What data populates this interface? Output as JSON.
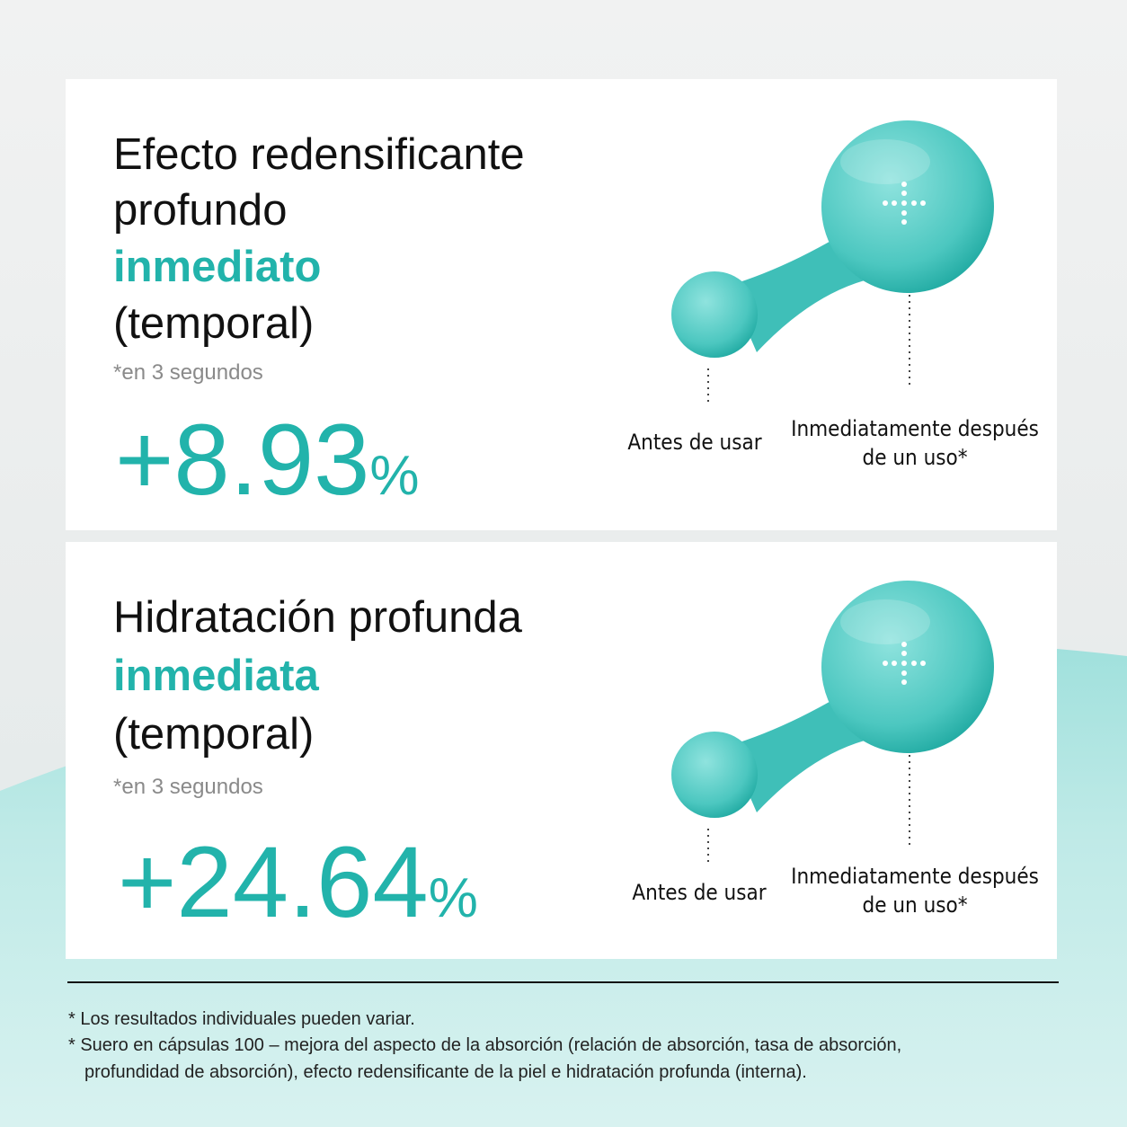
{
  "cards": [
    {
      "title": [
        "Efecto redensificante",
        "profundo"
      ],
      "highlight": "inmediato",
      "qualifier": "(temporal)",
      "note": "*en 3 segundos",
      "number": "+8.93",
      "unit": "%",
      "labels": {
        "before": "Antes de usar",
        "after": [
          "Inmediatamente después",
          "de un uso*"
        ]
      }
    },
    {
      "title": [
        "Hidratación profunda"
      ],
      "highlight": "inmediata",
      "qualifier": "(temporal)",
      "note": "*en 3 segundos",
      "number": "+24.64",
      "unit": "%",
      "labels": {
        "before": "Antes de usar",
        "after": [
          "Inmediatamente después",
          "de un uso*"
        ]
      }
    }
  ],
  "footnotes": [
    [
      "* Los resultados individuales pueden variar."
    ],
    [
      "* Suero en cápsulas 100 – mejora del aspecto de la absorción (relación de absorción, tasa de absorción,",
      "profundidad de absorción), efecto redensificante de la piel e hidratación profunda (interna)."
    ]
  ]
}
